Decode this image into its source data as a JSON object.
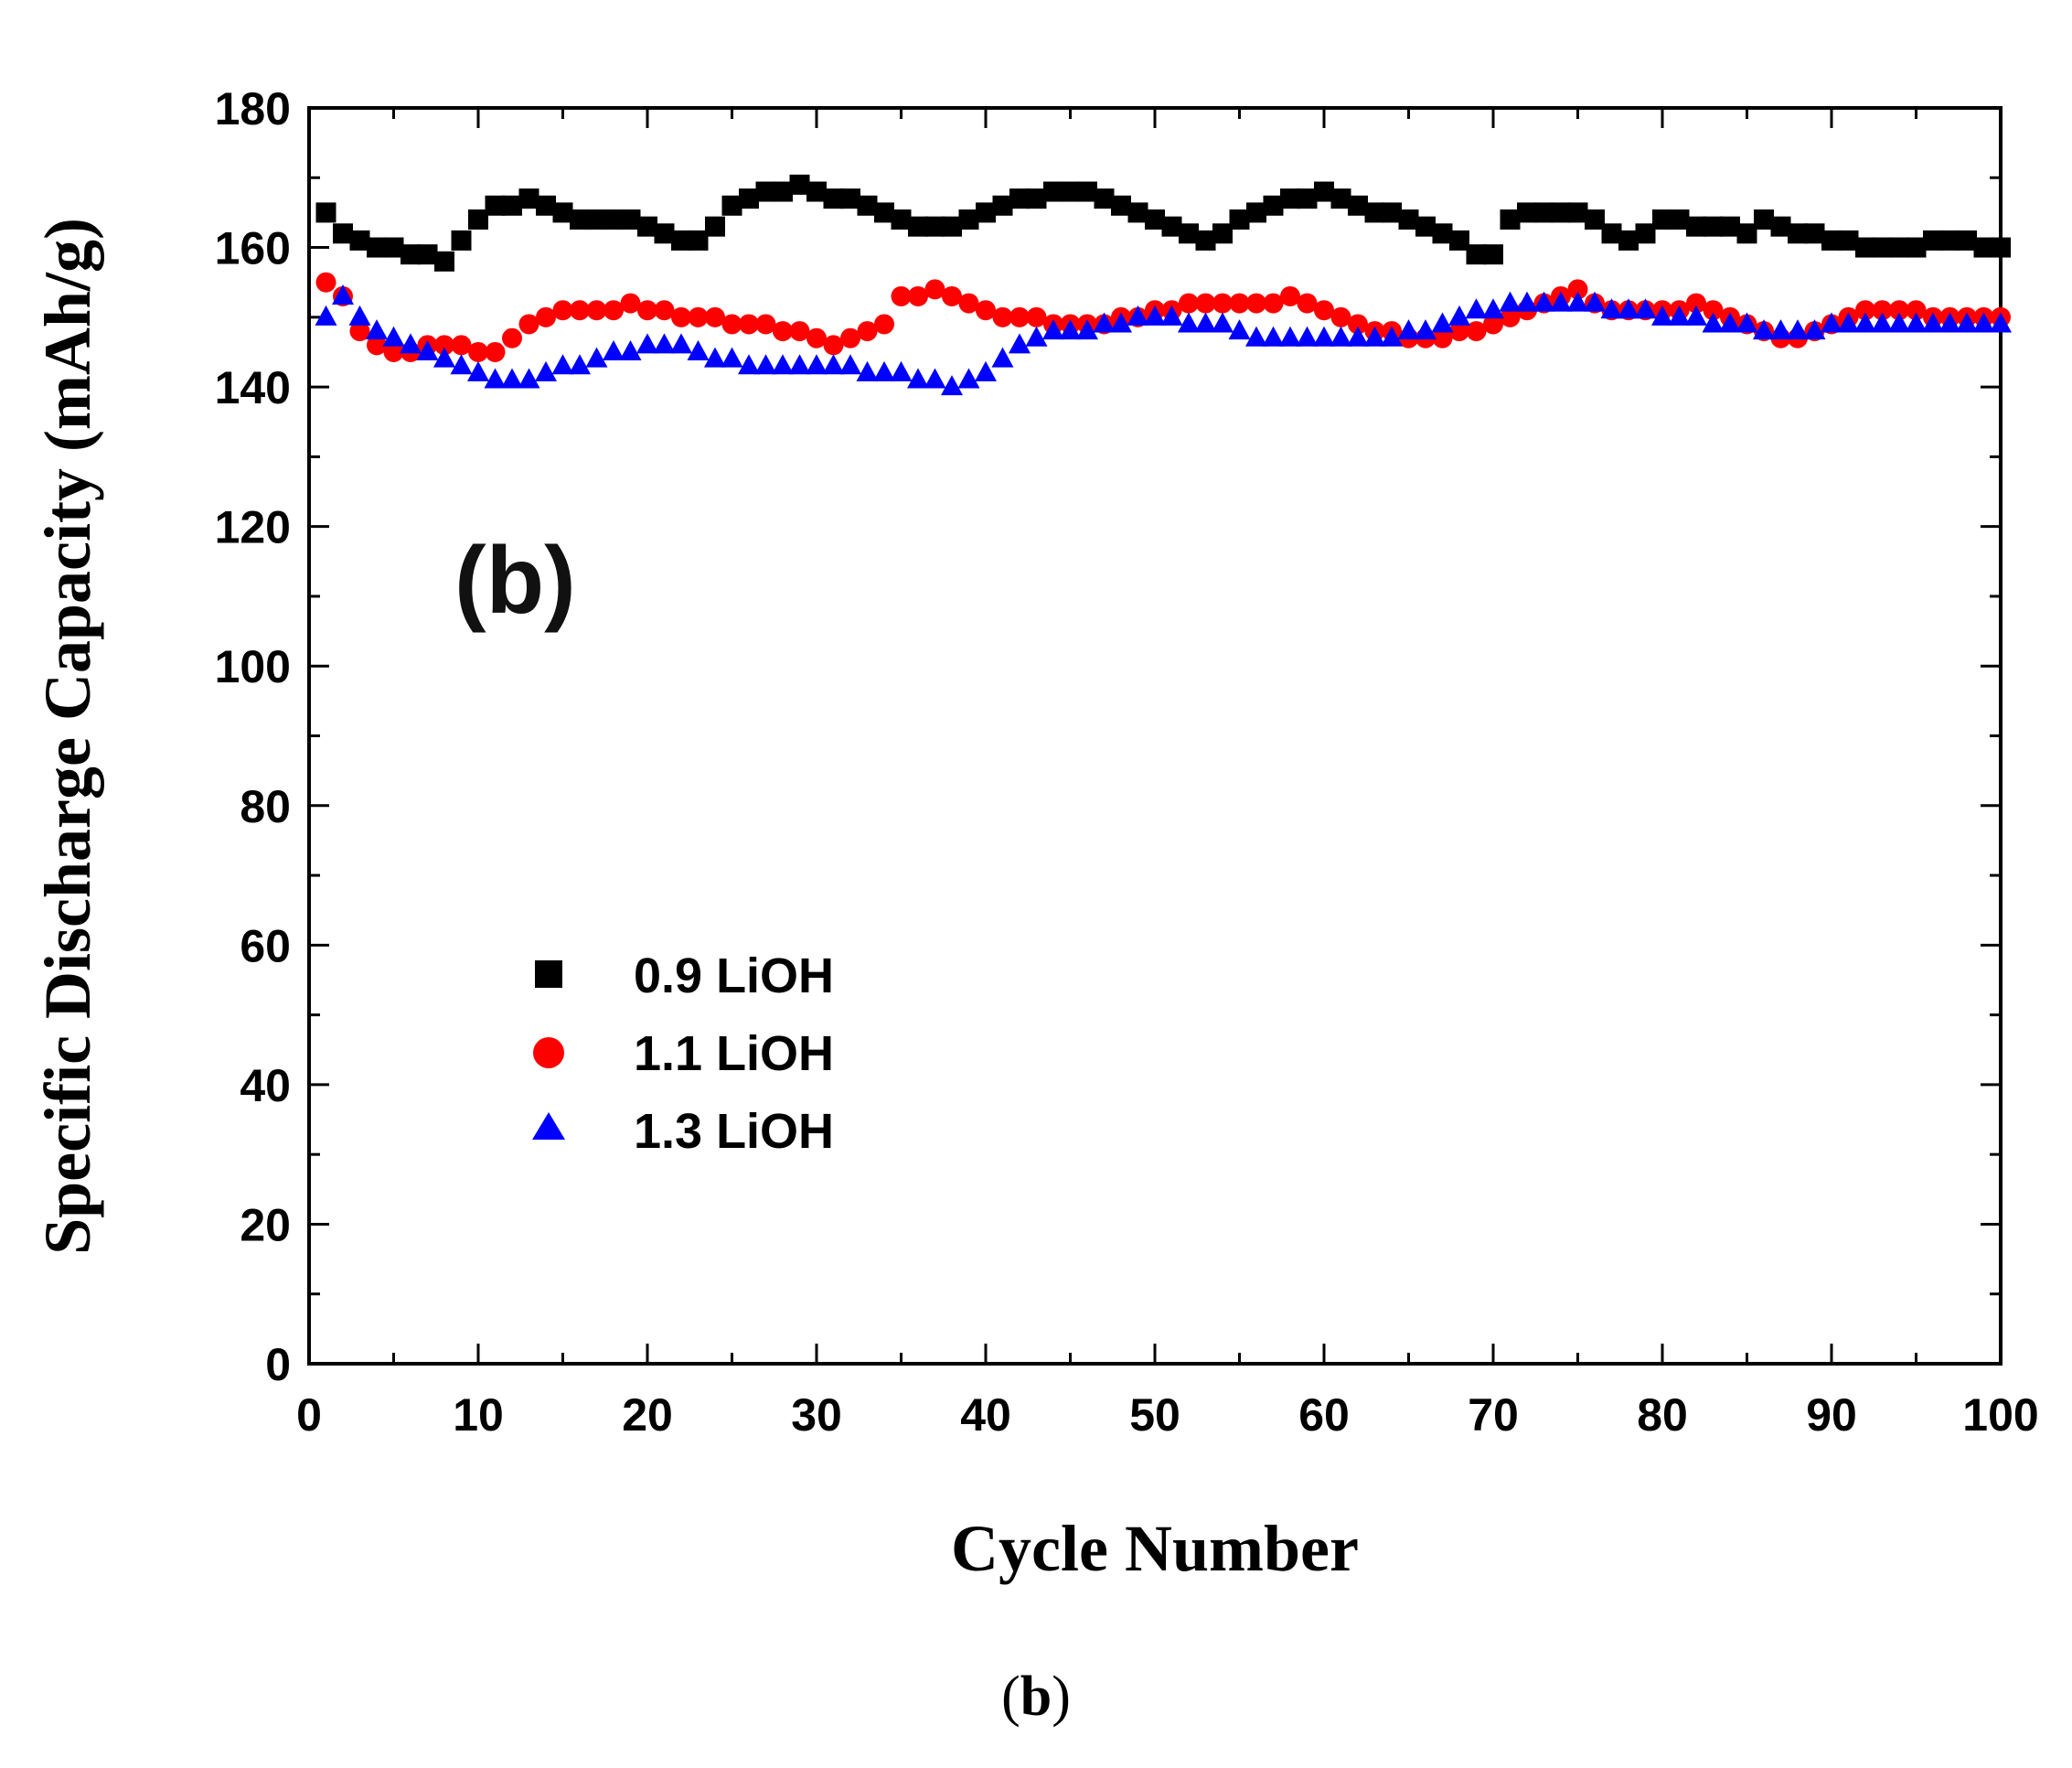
{
  "chart_data": {
    "type": "scatter",
    "title": "",
    "panel_label": "(b)",
    "xlabel": "Cycle Number",
    "ylabel": "Specific Discharge Capacity (mAh/g)",
    "xlim": [
      0,
      100
    ],
    "ylim": [
      0,
      180
    ],
    "xticks": [
      0,
      10,
      20,
      30,
      40,
      50,
      60,
      70,
      80,
      90,
      100
    ],
    "yticks": [
      0,
      20,
      40,
      60,
      80,
      100,
      120,
      140,
      160,
      180
    ],
    "grid": false,
    "legend_position": "lower-left",
    "x": [
      1,
      2,
      3,
      4,
      5,
      6,
      7,
      8,
      9,
      10,
      11,
      12,
      13,
      14,
      15,
      16,
      17,
      18,
      19,
      20,
      21,
      22,
      23,
      24,
      25,
      26,
      27,
      28,
      29,
      30,
      31,
      32,
      33,
      34,
      35,
      36,
      37,
      38,
      39,
      40,
      41,
      42,
      43,
      44,
      45,
      46,
      47,
      48,
      49,
      50,
      51,
      52,
      53,
      54,
      55,
      56,
      57,
      58,
      59,
      60,
      61,
      62,
      63,
      64,
      65,
      66,
      67,
      68,
      69,
      70,
      71,
      72,
      73,
      74,
      75,
      76,
      77,
      78,
      79,
      80,
      81,
      82,
      83,
      84,
      85,
      86,
      87,
      88,
      89,
      90,
      91,
      92,
      93,
      94,
      95,
      96,
      97,
      98,
      99,
      100
    ],
    "series": [
      {
        "name": "0.9 LiOH",
        "color": "#000000",
        "marker": "square",
        "values": [
          165,
          162,
          161,
          160,
          160,
          159,
          159,
          158,
          161,
          164,
          166,
          166,
          167,
          166,
          165,
          164,
          164,
          164,
          164,
          163,
          162,
          161,
          161,
          163,
          166,
          167,
          168,
          168,
          169,
          168,
          167,
          167,
          166,
          165,
          164,
          163,
          163,
          163,
          164,
          165,
          166,
          167,
          167,
          168,
          168,
          168,
          167,
          166,
          165,
          164,
          163,
          162,
          161,
          162,
          164,
          165,
          166,
          167,
          167,
          168,
          167,
          166,
          165,
          165,
          164,
          163,
          162,
          161,
          159,
          159,
          164,
          165,
          165,
          165,
          165,
          164,
          162,
          161,
          162,
          164,
          164,
          163,
          163,
          163,
          162,
          164,
          163,
          162,
          162,
          161,
          161,
          160,
          160,
          160,
          160,
          161,
          161,
          161,
          160,
          160
        ]
      },
      {
        "name": "1.1 LiOH",
        "color": "#ff0000",
        "marker": "circle",
        "values": [
          155,
          153,
          148,
          146,
          145,
          145,
          146,
          146,
          146,
          145,
          145,
          147,
          149,
          150,
          151,
          151,
          151,
          151,
          152,
          151,
          151,
          150,
          150,
          150,
          149,
          149,
          149,
          148,
          148,
          147,
          146,
          147,
          148,
          149,
          153,
          153,
          154,
          153,
          152,
          151,
          150,
          150,
          150,
          149,
          149,
          149,
          149,
          150,
          150,
          151,
          151,
          152,
          152,
          152,
          152,
          152,
          152,
          153,
          152,
          151,
          150,
          149,
          148,
          148,
          147,
          147,
          147,
          148,
          148,
          149,
          150,
          151,
          152,
          153,
          154,
          152,
          151,
          151,
          151,
          151,
          151,
          152,
          151,
          150,
          149,
          148,
          147,
          147,
          148,
          149,
          150,
          151,
          151,
          151,
          151,
          150,
          150,
          150,
          150,
          150
        ]
      },
      {
        "name": "1.3 LiOH",
        "color": "#0000ff",
        "marker": "triangle",
        "values": [
          150,
          153,
          150,
          148,
          147,
          146,
          145,
          144,
          143,
          142,
          141,
          141,
          141,
          142,
          143,
          143,
          144,
          145,
          145,
          146,
          146,
          146,
          145,
          144,
          144,
          143,
          143,
          143,
          143,
          143,
          143,
          143,
          142,
          142,
          142,
          141,
          141,
          140,
          141,
          142,
          144,
          146,
          147,
          148,
          148,
          148,
          149,
          149,
          150,
          150,
          150,
          149,
          149,
          149,
          148,
          147,
          147,
          147,
          147,
          147,
          147,
          147,
          147,
          147,
          148,
          148,
          149,
          150,
          151,
          151,
          152,
          152,
          152,
          152,
          152,
          152,
          151,
          151,
          151,
          150,
          150,
          150,
          149,
          149,
          149,
          148,
          148,
          148,
          148,
          149,
          149,
          149,
          149,
          149,
          149,
          149,
          149,
          149,
          149,
          149
        ]
      }
    ]
  },
  "caption": {
    "open": "(",
    "label": "b",
    "close": ")"
  }
}
